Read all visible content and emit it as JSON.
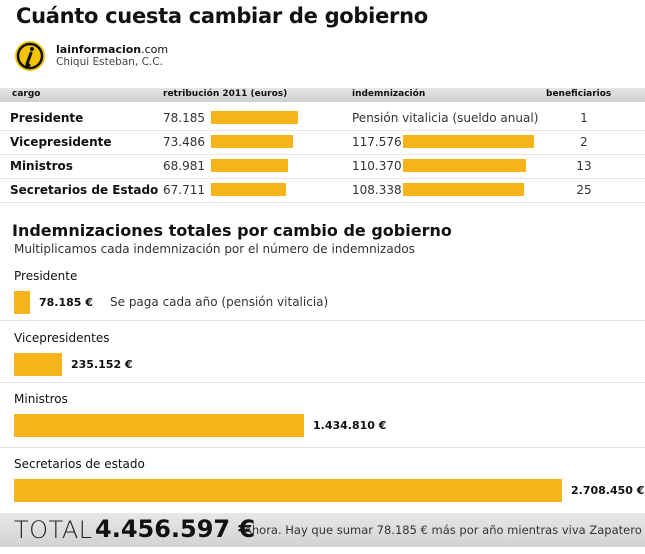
{
  "title": "Cuánto cuesta cambiar de gobierno",
  "brand": {
    "name_bold": "lainformacion",
    "name_suffix": ".com",
    "author": "Chiqui Esteban, C.C.",
    "logo_icon": "info-i-icon"
  },
  "colors": {
    "bar": "#f5b41a",
    "header_bg": "#d9d9d9"
  },
  "table": {
    "headers": [
      "cargo",
      "retribución 2011 (euros)",
      "indemnización",
      "beneficiarios"
    ],
    "rows": [
      {
        "cargo": "Presidente",
        "retribucion": "78.185",
        "indemnizacion": "Pensión vitalicia (sueldo anual)",
        "beneficiarios": "1"
      },
      {
        "cargo": "Vicepresidente",
        "retribucion": "73.486",
        "indemnizacion": "117.576",
        "beneficiarios": "2"
      },
      {
        "cargo": "Ministros",
        "retribucion": "68.981",
        "indemnizacion": "110.370",
        "beneficiarios": "13"
      },
      {
        "cargo": "Secretarios de Estado",
        "retribucion": "67.711",
        "indemnizacion": "108.338",
        "beneficiarios": "25"
      }
    ]
  },
  "totals_section": {
    "title": "Indemnizaciones totales por cambio de gobierno",
    "subtitle": "Multiplicamos cada indemnización por el número de indemnizados",
    "groups": [
      {
        "label": "Presidente",
        "value_text": "78.185 €",
        "note": "Se paga cada año (pensión vitalicia)"
      },
      {
        "label": "Vicepresidentes",
        "value_text": "235.152 €",
        "note": ""
      },
      {
        "label": "Ministros",
        "value_text": "1.434.810 €",
        "note": ""
      },
      {
        "label": "Secretarios de estado",
        "value_text": "2.708.450 €",
        "note": ""
      }
    ]
  },
  "total": {
    "label": "TOTAL",
    "value": "4.456.597 €",
    "note": "Ahora. Hay que sumar 78.185 € más por año mientras viva Zapatero"
  },
  "chart_data": [
    {
      "type": "bar",
      "title": "retribución 2011 (euros)",
      "categories": [
        "Presidente",
        "Vicepresidente",
        "Ministros",
        "Secretarios de Estado"
      ],
      "values": [
        78185,
        73486,
        68981,
        67711
      ]
    },
    {
      "type": "bar",
      "title": "indemnización",
      "categories": [
        "Vicepresidente",
        "Ministros",
        "Secretarios de Estado"
      ],
      "values": [
        117576,
        110370,
        108338
      ]
    },
    {
      "type": "bar",
      "title": "Indemnizaciones totales por cambio de gobierno",
      "subtitle": "Multiplicamos cada indemnización por el número de indemnizados",
      "categories": [
        "Presidente",
        "Vicepresidentes",
        "Ministros",
        "Secretarios de estado"
      ],
      "values": [
        78185,
        235152,
        1434810,
        2708450
      ]
    }
  ]
}
